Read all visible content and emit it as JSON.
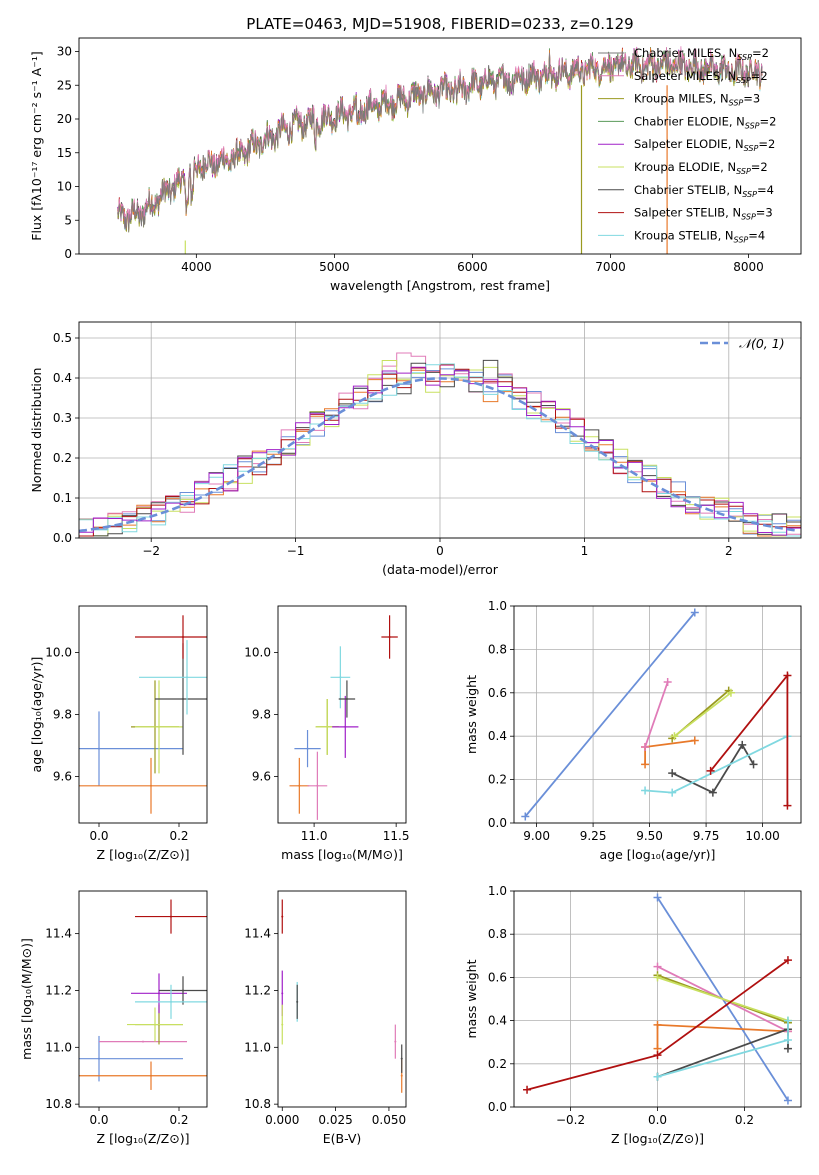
{
  "figure": {
    "title": "PLATE=0463, MJD=51908, FIBERID=0233, z=0.129"
  },
  "colors": {
    "blue": "#6a8fd8",
    "orange": "#e8792a",
    "pink": "#e07bb8",
    "olive": "#9a9a20",
    "green": "#5a9a5a",
    "purple": "#a020c8",
    "yellowgreen": "#c8e060",
    "dark": "#4a4a4a",
    "red": "#b01010",
    "cyan": "#80d8e0",
    "spectrum": "#7a7a7a"
  },
  "chart_data": [
    {
      "id": "spectrum",
      "type": "line",
      "xlabel": "wavelength [Angstrom, rest frame]",
      "ylabel": "Flux [fλ10⁻¹⁷ erg cm⁻² s⁻¹ A⁻¹]",
      "xlim": [
        3150,
        8380
      ],
      "ylim": [
        0,
        32
      ],
      "xticks": [
        "4000",
        "5000",
        "6000",
        "7000",
        "8000"
      ],
      "yticks": [
        "0",
        "5",
        "10",
        "15",
        "20",
        "25",
        "30"
      ],
      "legend_position": "top-right",
      "continuum": {
        "x": [
          3430,
          3600,
          3800,
          3950,
          4000,
          4150,
          4300,
          4500,
          4700,
          4900,
          5100,
          5300,
          5500,
          5700,
          5900,
          6100,
          6300,
          6500,
          6700,
          6900,
          7100,
          7300,
          7500,
          7700,
          7900,
          8100
        ],
        "y": [
          5.5,
          6,
          9.5,
          11.5,
          13,
          13.5,
          14.5,
          17,
          19,
          20,
          21,
          22,
          23,
          24,
          24.5,
          25.5,
          26,
          26.5,
          27,
          27.5,
          28,
          28,
          28,
          27.5,
          27,
          27
        ]
      },
      "series": [
        {
          "name": "Chabrier MILES, N_SSP=2",
          "color": "spectrum"
        },
        {
          "name": "Salpeter MILES, N_SSP=2",
          "color": "pink"
        },
        {
          "name": "Kroupa MILES, N_SSP=3",
          "color": "olive"
        },
        {
          "name": "Chabrier ELODIE, N_SSP=2",
          "color": "green"
        },
        {
          "name": "Salpeter ELODIE, N_SSP=2",
          "color": "purple"
        },
        {
          "name": "Kroupa ELODIE, N_SSP=2",
          "color": "yellowgreen"
        },
        {
          "name": "Chabrier STELIB, N_SSP=4",
          "color": "dark"
        },
        {
          "name": "Salpeter STELIB, N_SSP=3",
          "color": "red"
        },
        {
          "name": "Kroupa STELIB, N_SSP=4",
          "color": "cyan"
        }
      ],
      "legend_entries": [
        {
          "label": "Chabrier MILES, N",
          "sub": "SSP",
          "tail": "=2",
          "color": "spectrum"
        },
        {
          "label": "Salpeter MILES, N",
          "sub": "SSP",
          "tail": "=2",
          "color": "pink"
        },
        {
          "label": "Kroupa MILES, N",
          "sub": "SSP",
          "tail": "=3",
          "color": "olive"
        },
        {
          "label": "Chabrier ELODIE, N",
          "sub": "SSP",
          "tail": "=2",
          "color": "green"
        },
        {
          "label": "Salpeter ELODIE, N",
          "sub": "SSP",
          "tail": "=2",
          "color": "purple"
        },
        {
          "label": "Kroupa ELODIE, N",
          "sub": "SSP",
          "tail": "=2",
          "color": "yellowgreen"
        },
        {
          "label": "Chabrier STELIB, N",
          "sub": "SSP",
          "tail": "=4",
          "color": "dark"
        },
        {
          "label": "Salpeter STELIB, N",
          "sub": "SSP",
          "tail": "=3",
          "color": "red"
        },
        {
          "label": "Kroupa STELIB, N",
          "sub": "SSP",
          "tail": "=4",
          "color": "cyan"
        }
      ],
      "verticals": [
        {
          "x": 3920,
          "y0": 0,
          "y1": 2,
          "color": "yellowgreen"
        },
        {
          "x": 6790,
          "y0": 0,
          "y1": 25,
          "color": "olive"
        },
        {
          "x": 7410,
          "y0": 0,
          "y1": 25,
          "color": "orange"
        }
      ]
    },
    {
      "id": "residuals",
      "type": "bar",
      "xlabel": "(data-model)/error",
      "ylabel": "Normed distribution",
      "xlim": [
        -2.5,
        2.5
      ],
      "ylim": [
        0,
        0.54
      ],
      "xticks": [
        "−2",
        "−1",
        "0",
        "1",
        "2"
      ],
      "yticks": [
        "0.0",
        "0.1",
        "0.2",
        "0.3",
        "0.4",
        "0.5"
      ],
      "grid": true,
      "legend": "𝒩(0, 1)",
      "gaussian": {
        "mean": 0,
        "sigma": 1,
        "color": "blue"
      },
      "bin_width": 0.1,
      "histograms": [
        "blue",
        "orange",
        "pink",
        "yellowgreen",
        "dark",
        "red",
        "cyan",
        "purple"
      ]
    },
    {
      "id": "age-vs-Z",
      "type": "scatter",
      "xlabel": "Z [log₁₀(Z/Z⊙)]",
      "ylabel": "age  [log₁₀(age/yr)]",
      "xlim": [
        -0.05,
        0.27
      ],
      "ylim": [
        9.45,
        10.15
      ],
      "xticks": [
        "0.0",
        "0.2"
      ],
      "yticks": [
        "9.6",
        "9.8",
        "10.0"
      ],
      "points": [
        {
          "x": 0.0,
          "y": 9.69,
          "xerr": 0.21,
          "yerr": 0.12,
          "color": "blue"
        },
        {
          "x": 0.13,
          "y": 9.57,
          "xerr": 0.21,
          "yerr": 0.09,
          "color": "orange"
        },
        {
          "x": 0.14,
          "y": 9.76,
          "xerr": 0.06,
          "yerr": 0.15,
          "color": "olive"
        },
        {
          "x": 0.15,
          "y": 9.76,
          "xerr": 0.06,
          "yerr": 0.15,
          "color": "yellowgreen"
        },
        {
          "x": 0.21,
          "y": 9.85,
          "xerr": 0.07,
          "yerr": 0.18,
          "color": "dark"
        },
        {
          "x": 0.21,
          "y": 10.05,
          "xerr": 0.12,
          "yerr": 0.07,
          "color": "red"
        },
        {
          "x": 0.22,
          "y": 9.92,
          "xerr": 0.12,
          "yerr": 0.12,
          "color": "cyan"
        }
      ]
    },
    {
      "id": "age-vs-mass",
      "type": "scatter",
      "xlabel": "mass [log₁₀(M/M⊙)]",
      "ylabel": "",
      "xlim": [
        10.78,
        11.56
      ],
      "ylim": [
        9.45,
        10.15
      ],
      "xticks": [
        "11.0",
        "11.5"
      ],
      "yticks": [
        "9.6",
        "9.8",
        "10.0"
      ],
      "points": [
        {
          "x": 10.96,
          "y": 9.69,
          "xerr": 0.08,
          "yerr": 0.06,
          "color": "blue"
        },
        {
          "x": 10.91,
          "y": 9.57,
          "xerr": 0.06,
          "yerr": 0.09,
          "color": "orange"
        },
        {
          "x": 11.02,
          "y": 9.57,
          "xerr": 0.06,
          "yerr": 0.11,
          "color": "pink"
        },
        {
          "x": 11.08,
          "y": 9.76,
          "xerr": 0.07,
          "yerr": 0.09,
          "color": "olive"
        },
        {
          "x": 11.08,
          "y": 9.76,
          "xerr": 0.07,
          "yerr": 0.09,
          "color": "yellowgreen"
        },
        {
          "x": 11.19,
          "y": 9.76,
          "xerr": 0.08,
          "yerr": 0.1,
          "color": "purple"
        },
        {
          "x": 11.16,
          "y": 9.92,
          "xerr": 0.06,
          "yerr": 0.1,
          "color": "cyan"
        },
        {
          "x": 11.2,
          "y": 9.85,
          "xerr": 0.05,
          "yerr": 0.06,
          "color": "dark"
        },
        {
          "x": 11.46,
          "y": 10.05,
          "xerr": 0.05,
          "yerr": 0.07,
          "color": "red"
        }
      ]
    },
    {
      "id": "weight-vs-age",
      "type": "line",
      "xlabel": "age  [log₁₀(age/yr)]",
      "ylabel": "mass weight",
      "xlim": [
        8.9,
        10.17
      ],
      "ylim": [
        0,
        1
      ],
      "xticks": [
        "9.00",
        "9.25",
        "9.50",
        "9.75",
        "10.00"
      ],
      "yticks": [
        "0.0",
        "0.2",
        "0.4",
        "0.6",
        "0.8",
        "1.0"
      ],
      "grid": true,
      "series": [
        {
          "color": "blue",
          "x": [
            8.95,
            9.7
          ],
          "y": [
            0.03,
            0.97
          ]
        },
        {
          "color": "orange",
          "x": [
            9.48,
            9.48,
            9.7
          ],
          "y": [
            0.27,
            0.35,
            0.38
          ]
        },
        {
          "color": "pink",
          "x": [
            9.48,
            9.58
          ],
          "y": [
            0.35,
            0.65
          ]
        },
        {
          "color": "olive",
          "x": [
            9.6,
            9.85
          ],
          "y": [
            0.39,
            0.61
          ]
        },
        {
          "color": "yellowgreen",
          "x": [
            9.61,
            9.86
          ],
          "y": [
            0.4,
            0.6
          ]
        },
        {
          "color": "dark",
          "x": [
            9.6,
            9.78,
            9.91,
            9.96
          ],
          "y": [
            0.23,
            0.14,
            0.36,
            0.27
          ]
        },
        {
          "color": "cyan",
          "x": [
            9.48,
            9.6,
            10.11
          ],
          "y": [
            0.15,
            0.14,
            0.4
          ]
        },
        {
          "color": "red",
          "x": [
            9.77,
            10.11,
            10.11
          ],
          "y": [
            0.24,
            0.68,
            0.08
          ]
        }
      ]
    },
    {
      "id": "mass-vs-Z",
      "type": "scatter",
      "xlabel": "Z [log₁₀(Z/Z⊙)]",
      "ylabel": "mass [log₁₀(M/M⊙)]",
      "xlim": [
        -0.05,
        0.27
      ],
      "ylim": [
        10.79,
        11.55
      ],
      "xticks": [
        "0.0",
        "0.2"
      ],
      "yticks": [
        "10.8",
        "11.0",
        "11.2",
        "11.4"
      ],
      "points": [
        {
          "x": 0.0,
          "y": 10.96,
          "xerr": 0.21,
          "yerr": 0.08,
          "color": "blue"
        },
        {
          "x": 0.13,
          "y": 10.9,
          "xerr": 0.21,
          "yerr": 0.05,
          "color": "orange"
        },
        {
          "x": 0.11,
          "y": 11.02,
          "xerr": 0.11,
          "yerr": 0.0,
          "color": "pink"
        },
        {
          "x": 0.15,
          "y": 11.08,
          "xerr": 0.06,
          "yerr": 0.07,
          "color": "olive"
        },
        {
          "x": 0.14,
          "y": 11.08,
          "xerr": 0.07,
          "yerr": 0.06,
          "color": "yellowgreen"
        },
        {
          "x": 0.15,
          "y": 11.19,
          "xerr": 0.07,
          "yerr": 0.07,
          "color": "purple"
        },
        {
          "x": 0.21,
          "y": 11.2,
          "xerr": 0.06,
          "yerr": 0.05,
          "color": "dark"
        },
        {
          "x": 0.18,
          "y": 11.16,
          "xerr": 0.09,
          "yerr": 0.06,
          "color": "cyan"
        },
        {
          "x": 0.18,
          "y": 11.46,
          "xerr": 0.09,
          "yerr": 0.06,
          "color": "red"
        }
      ]
    },
    {
      "id": "mass-vs-EBV",
      "type": "scatter",
      "xlabel": "E(B-V)",
      "ylabel": "",
      "xlim": [
        -0.002,
        0.058
      ],
      "ylim": [
        10.79,
        11.55
      ],
      "xticks": [
        "0.000",
        "0.025",
        "0.050"
      ],
      "yticks": [
        "10.8",
        "11.0",
        "11.2",
        "11.4"
      ],
      "points": [
        {
          "x": 0.0,
          "y": 11.46,
          "xerr": 0,
          "yerr": 0.06,
          "color": "red"
        },
        {
          "x": 0.0,
          "y": 11.19,
          "xerr": 0,
          "yerr": 0.08,
          "color": "purple"
        },
        {
          "x": 0.0,
          "y": 11.08,
          "xerr": 0,
          "yerr": 0.07,
          "color": "yellowgreen"
        },
        {
          "x": 0.007,
          "y": 11.16,
          "xerr": 0,
          "yerr": 0.07,
          "color": "cyan"
        },
        {
          "x": 0.007,
          "y": 11.16,
          "xerr": 0,
          "yerr": 0.06,
          "color": "dark"
        },
        {
          "x": 0.053,
          "y": 11.02,
          "xerr": 0,
          "yerr": 0.06,
          "color": "pink"
        },
        {
          "x": 0.056,
          "y": 10.9,
          "xerr": 0,
          "yerr": 0.06,
          "color": "orange"
        },
        {
          "x": 0.056,
          "y": 10.96,
          "xerr": 0,
          "yerr": 0.05,
          "color": "dark"
        }
      ]
    },
    {
      "id": "weight-vs-Z",
      "type": "line",
      "xlabel": "Z [log₁₀(Z/Z⊙)]",
      "ylabel": "mass weight",
      "xlim": [
        -0.33,
        0.33
      ],
      "ylim": [
        0,
        1
      ],
      "xticks": [
        "−0.2",
        "0.0",
        "0.2"
      ],
      "yticks": [
        "0.0",
        "0.2",
        "0.4",
        "0.6",
        "0.8",
        "1.0"
      ],
      "grid": true,
      "series": [
        {
          "color": "blue",
          "x": [
            0.0,
            0.3
          ],
          "y": [
            0.97,
            0.03
          ]
        },
        {
          "color": "orange",
          "x": [
            0.0,
            0.0,
            0.3
          ],
          "y": [
            0.27,
            0.38,
            0.35
          ]
        },
        {
          "color": "pink",
          "x": [
            0.0,
            0.3
          ],
          "y": [
            0.65,
            0.35
          ]
        },
        {
          "color": "olive",
          "x": [
            0.0,
            0.3
          ],
          "y": [
            0.61,
            0.39
          ]
        },
        {
          "color": "yellowgreen",
          "x": [
            0.0,
            0.3
          ],
          "y": [
            0.6,
            0.4
          ]
        },
        {
          "color": "dark",
          "x": [
            0.0,
            0.3,
            0.3
          ],
          "y": [
            0.14,
            0.36,
            0.27
          ]
        },
        {
          "color": "cyan",
          "x": [
            0.0,
            0.3,
            0.3
          ],
          "y": [
            0.14,
            0.31,
            0.4
          ]
        },
        {
          "color": "red",
          "x": [
            -0.3,
            0.0,
            0.3
          ],
          "y": [
            0.08,
            0.24,
            0.68
          ]
        }
      ]
    }
  ]
}
